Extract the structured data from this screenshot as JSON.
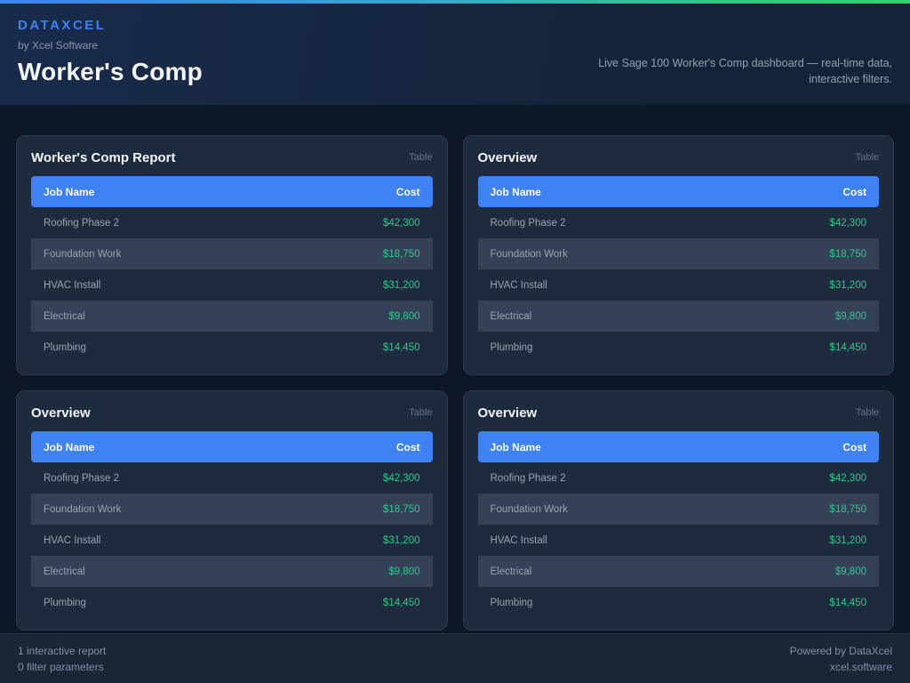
{
  "header": {
    "brand": "DATAXCEL",
    "byline": "by Xcel Software",
    "title": "Worker's Comp",
    "tagline_line1": "Live Sage 100 Worker's Comp dashboard — real-time data,",
    "tagline_line2": "interactive filters."
  },
  "colors": {
    "accent_blue": "#3b82f6",
    "table_header_blue": "#3e82f4",
    "cost_green": "#2fca8a",
    "top_gradient": [
      "#3b82f6",
      "#2fa9d0",
      "#2dd36f"
    ],
    "card_background": "#1e2a3d",
    "stripe_background": "#344157",
    "page_background": "#0e1726"
  },
  "cards": [
    {
      "title": "Worker's Comp Report",
      "type_label": "Table",
      "columns": [
        "Job Name",
        "Cost"
      ],
      "rows": [
        {
          "job": "Roofing Phase 2",
          "cost": "$42,300"
        },
        {
          "job": "Foundation Work",
          "cost": "$18,750"
        },
        {
          "job": "HVAC Install",
          "cost": "$31,200"
        },
        {
          "job": "Electrical",
          "cost": "$9,800"
        },
        {
          "job": "Plumbing",
          "cost": "$14,450"
        }
      ]
    },
    {
      "title": "Overview",
      "type_label": "Table",
      "columns": [
        "Job Name",
        "Cost"
      ],
      "rows": [
        {
          "job": "Roofing Phase 2",
          "cost": "$42,300"
        },
        {
          "job": "Foundation Work",
          "cost": "$18,750"
        },
        {
          "job": "HVAC Install",
          "cost": "$31,200"
        },
        {
          "job": "Electrical",
          "cost": "$9,800"
        },
        {
          "job": "Plumbing",
          "cost": "$14,450"
        }
      ]
    },
    {
      "title": "Overview",
      "type_label": "Table",
      "columns": [
        "Job Name",
        "Cost"
      ],
      "rows": [
        {
          "job": "Roofing Phase 2",
          "cost": "$42,300"
        },
        {
          "job": "Foundation Work",
          "cost": "$18,750"
        },
        {
          "job": "HVAC Install",
          "cost": "$31,200"
        },
        {
          "job": "Electrical",
          "cost": "$9,800"
        },
        {
          "job": "Plumbing",
          "cost": "$14,450"
        }
      ]
    },
    {
      "title": "Overview",
      "type_label": "Table",
      "columns": [
        "Job Name",
        "Cost"
      ],
      "rows": [
        {
          "job": "Roofing Phase 2",
          "cost": "$42,300"
        },
        {
          "job": "Foundation Work",
          "cost": "$18,750"
        },
        {
          "job": "HVAC Install",
          "cost": "$31,200"
        },
        {
          "job": "Electrical",
          "cost": "$9,800"
        },
        {
          "job": "Plumbing",
          "cost": "$14,450"
        }
      ]
    }
  ],
  "footer": {
    "left_line1": "1 interactive report",
    "left_line2": "0 filter parameters",
    "right_line1": "Powered by DataXcel",
    "right_line2": "xcel.software"
  }
}
